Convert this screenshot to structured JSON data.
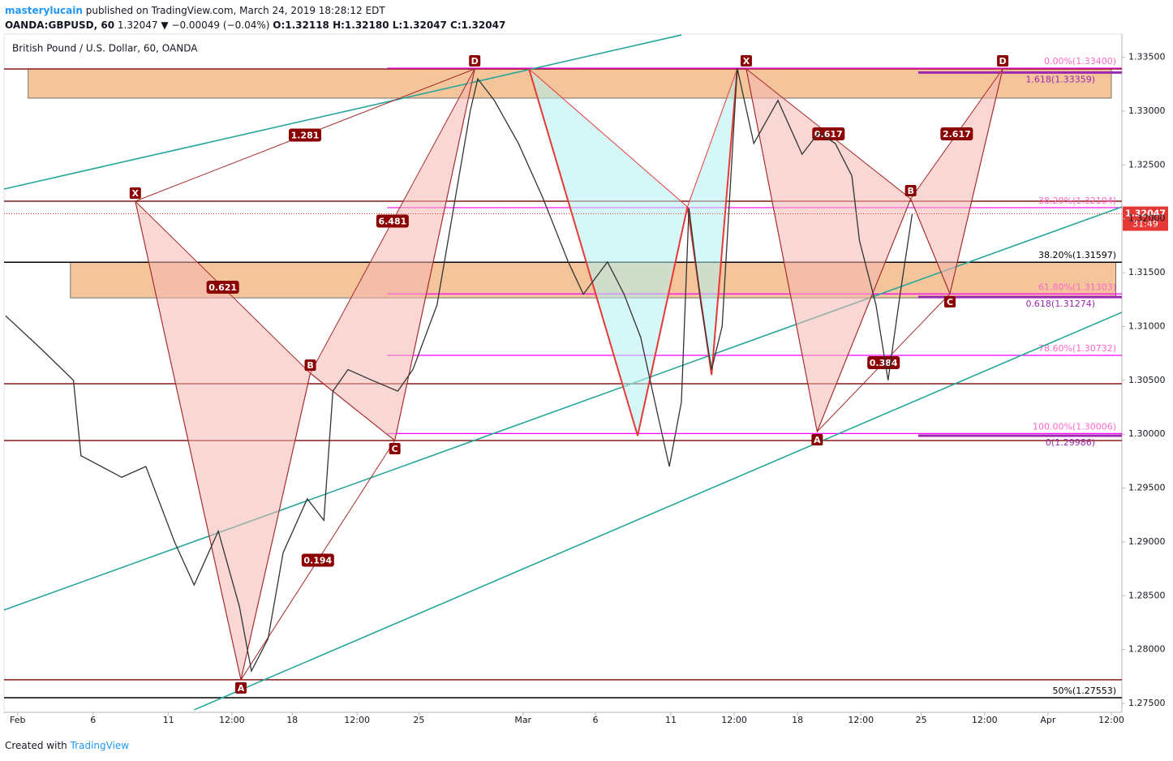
{
  "header": {
    "publisher": "masterylucain",
    "published": "published on TradingView.com, March 24, 2019 18:28:12 EDT",
    "symbol": "OANDA:GBPUSD, 60",
    "last": "1.32047",
    "change": "▼ −0.00049 (−0.04%)",
    "ohlc": "O:1.32118 H:1.32180 L:1.32047 C:1.32047"
  },
  "footer": {
    "prefix": "Created with",
    "brand": "TradingView"
  },
  "chart_data": {
    "type": "line",
    "title": "British Pound / U.S. Dollar, 60, OANDA",
    "color": "#333333",
    "x": [
      -0.8,
      1.5,
      3.7,
      4.2,
      6.9,
      8.5,
      10.4,
      11.7,
      13.3,
      14.7,
      15.5,
      16.6,
      17.6,
      19.2,
      20.3,
      20.9,
      21.9,
      23.5,
      25.2,
      26.2,
      27.8,
      28.9,
      30.0,
      30.5,
      31.6,
      33.2,
      34.8,
      36.5,
      37.5,
      39.1,
      40.2,
      41.3,
      42.4,
      43.2,
      44.0,
      44.5,
      45.3,
      46.0,
      46.7,
      47.2,
      47.7,
      48.8,
      50.4,
      52.0,
      53.1,
      54.2,
      55.3,
      55.8,
      56.9,
      57.7,
      58.5,
      59.3
    ],
    "values": [
      1.311,
      1.308,
      1.305,
      1.298,
      1.296,
      1.297,
      1.29,
      1.286,
      1.291,
      1.284,
      1.278,
      1.281,
      1.289,
      1.294,
      1.292,
      1.304,
      1.306,
      1.305,
      1.304,
      1.306,
      1.312,
      1.321,
      1.33,
      1.333,
      1.331,
      1.327,
      1.322,
      1.316,
      1.313,
      1.316,
      1.313,
      1.309,
      1.302,
      1.297,
      1.303,
      1.321,
      1.312,
      1.306,
      1.31,
      1.322,
      1.334,
      1.327,
      1.331,
      1.326,
      1.328,
      1.327,
      1.324,
      1.318,
      1.312,
      1.305,
      1.313,
      1.32047
    ],
    "xlim": [
      -0.9,
      73.2
    ],
    "xticks": [
      {
        "value": 0,
        "label": "Feb"
      },
      {
        "value": 5,
        "label": "6"
      },
      {
        "value": 10,
        "label": "11"
      },
      {
        "value": 14.2,
        "label": "12:00"
      },
      {
        "value": 18.2,
        "label": "18"
      },
      {
        "value": 22.5,
        "label": "12:00"
      },
      {
        "value": 26.6,
        "label": "25"
      },
      {
        "value": 33.5,
        "label": "Mar"
      },
      {
        "value": 38.3,
        "label": "6"
      },
      {
        "value": 43.3,
        "label": "11"
      },
      {
        "value": 47.5,
        "label": "12:00"
      },
      {
        "value": 51.7,
        "label": "18"
      },
      {
        "value": 55.9,
        "label": "12:00"
      },
      {
        "value": 59.9,
        "label": "25"
      },
      {
        "value": 64.1,
        "label": "12:00"
      },
      {
        "value": 68.3,
        "label": "Apr"
      },
      {
        "value": 72.5,
        "label": "12:00"
      }
    ],
    "ylim": [
      1.27417,
      1.33716
    ],
    "yticks": [
      {
        "value": 1.335,
        "label": "1.33500"
      },
      {
        "value": 1.33,
        "label": "1.33000"
      },
      {
        "value": 1.325,
        "label": "1.32500"
      },
      {
        "value": 1.32,
        "label": "1.32000"
      },
      {
        "value": 1.315,
        "label": "1.31500"
      },
      {
        "value": 1.31,
        "label": "1.31000"
      },
      {
        "value": 1.305,
        "label": "1.30500"
      },
      {
        "value": 1.3,
        "label": "1.30000"
      },
      {
        "value": 1.295,
        "label": "1.29500"
      },
      {
        "value": 1.29,
        "label": "1.29000"
      },
      {
        "value": 1.285,
        "label": "1.28500"
      },
      {
        "value": 1.28,
        "label": "1.28000"
      },
      {
        "value": 1.275,
        "label": "1.27500"
      }
    ],
    "grid": false,
    "last_price": {
      "value": 1.32047,
      "countdown": "31:49",
      "color": "#e53935"
    },
    "zones": [
      {
        "x": [
          0.7,
          72.5
        ],
        "y": [
          1.33121,
          1.33392
        ],
        "color": "#f0b27a"
      },
      {
        "x": [
          3.5,
          72.8
        ],
        "y": [
          1.31266,
          1.31597
        ],
        "color": "#f0b27a"
      }
    ],
    "levels": [
      {
        "value": 1.33392,
        "color": "#8b1a1a"
      },
      {
        "value": 1.32164,
        "color": "#8b1a1a"
      },
      {
        "value": 1.30469,
        "color": "#8b1a1a"
      },
      {
        "value": 1.29941,
        "color": "#8b1a1a"
      },
      {
        "value": 1.27719,
        "color": "#8b1a1a"
      }
    ],
    "fib_levels": [
      {
        "value": 1.334,
        "label": "0.00%(1.33400)",
        "color": "#ff00ff",
        "x_from": 24.5
      },
      {
        "value": 1.32104,
        "label": "38.20%(1.32104)",
        "color": "#ff00ff",
        "x_from": 24.5
      },
      {
        "value": 1.31303,
        "label": "61.80%(1.31303)",
        "color": "#ff00ff",
        "x_from": 24.5
      },
      {
        "value": 1.30732,
        "label": "78.60%(1.30732)",
        "color": "#ff00ff",
        "x_from": 24.5
      },
      {
        "value": 1.30006,
        "label": "100.00%(1.30006)",
        "color": "#ff00ff",
        "x_from": 24.5
      },
      {
        "value": 1.33359,
        "label": "1.618(1.33359)",
        "color": "#9c27b0",
        "x_from": 59.7
      },
      {
        "value": 1.31274,
        "label": "0.618(1.31274)",
        "color": "#9c27b0",
        "x_from": 59.7
      },
      {
        "value": 1.29986,
        "label": "0(1.29986)",
        "color": "#9c27b0",
        "x_from": 59.7
      },
      {
        "value": 1.31597,
        "label": "38.20%(1.31597)",
        "color": "#000000",
        "x_from": -0.9
      },
      {
        "value": 1.27553,
        "label": "50%(1.27553)",
        "color": "#000000",
        "x_from": -0.9
      }
    ],
    "trendlines": [
      {
        "x": [
          -0.9,
          44.0
        ],
        "y": [
          1.32277,
          1.33708
        ],
        "color": "#26a69a"
      },
      {
        "x": [
          -0.9,
          73.2
        ],
        "y": [
          1.28367,
          1.32111
        ],
        "color": "#26a69a"
      },
      {
        "x": [
          11.7,
          73.2
        ],
        "y": [
          1.2744,
          1.31132
        ],
        "color": "#26a69a"
      }
    ],
    "patterns": [
      {
        "x": [
          7.8,
          14.8,
          19.4,
          25.0,
          30.3
        ],
        "y": [
          1.32164,
          1.27719,
          1.30566,
          1.29941,
          1.33392
        ],
        "point_labels": [
          "X",
          "A",
          "B",
          "C",
          "D"
        ],
        "ratios": [
          0.621,
          0.194,
          6.481,
          1.281
        ],
        "color": "#a52a2a",
        "fill": "#f4b6b0"
      },
      {
        "x": [
          33.9,
          41.1,
          44.4,
          46.0,
          47.7
        ],
        "y": [
          1.33392,
          1.29986,
          1.32111,
          1.30551,
          1.33392
        ],
        "color": "#e53935",
        "fill": "#b2f0f0"
      },
      {
        "x": [
          48.3,
          53.0,
          59.2,
          61.8,
          65.3
        ],
        "y": [
          1.33392,
          1.30024,
          1.32186,
          1.31305,
          1.33392
        ],
        "point_labels": [
          "X",
          "A",
          "B",
          "C",
          "D"
        ],
        "ratios": [
          0.617,
          0.384,
          2.617
        ],
        "color": "#a52a2a",
        "fill": "#f4b6b0"
      }
    ]
  }
}
